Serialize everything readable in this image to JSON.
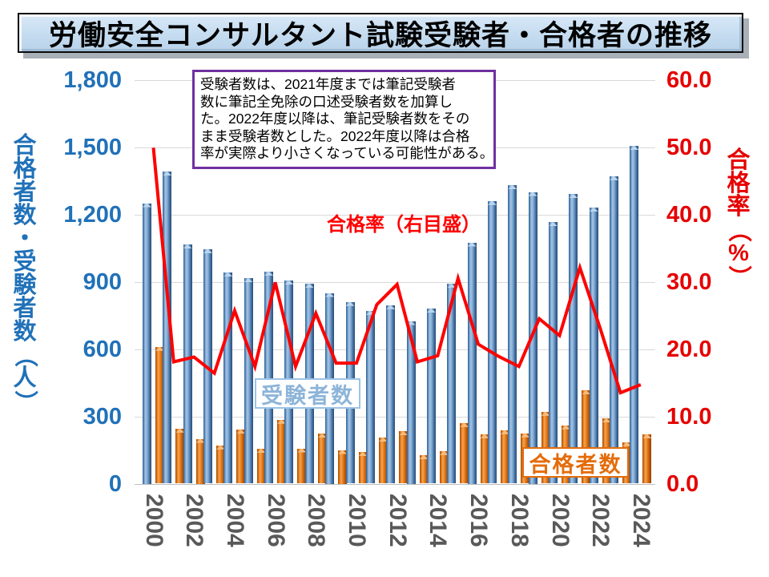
{
  "title": "労働安全コンサルタント試験受験者・合格者の推移",
  "annotation": {
    "lines": [
      "受験者数は、2021年度までは筆記受験者",
      "数に筆記全免除の口述受験者数を加算し",
      "た。2022年度以降は、筆記受験者数をその",
      "まま受験者数とした。2022年度以降は合格",
      "率が実際より小さくなっている可能性がある。"
    ]
  },
  "left_axis": {
    "title": "合格者数・受験者数（人）",
    "ticks": [
      "1,800",
      "1,500",
      "1,200",
      "900",
      "600",
      "300",
      "0"
    ],
    "color": "#2071b8"
  },
  "right_axis": {
    "title": "合格率（%）",
    "ticks": [
      "60.0",
      "50.0",
      "40.0",
      "30.0",
      "20.0",
      "10.0",
      "0.0"
    ],
    "color": "#e60000"
  },
  "x_axis": {
    "ticks": [
      "2000",
      "2002",
      "2004",
      "2006",
      "2008",
      "2010",
      "2012",
      "2014",
      "2016",
      "2018",
      "2020",
      "2022",
      "2024"
    ],
    "color": "#595959"
  },
  "labels": {
    "rate_line": "合格率（右目盛）",
    "examinees": "受験者数",
    "passers": "合格者数"
  },
  "colors": {
    "examinees_bar": "#4f81bd",
    "passers_bar": "#e46c0a",
    "rate_line": "#ff0000",
    "annotation_border": "#7030a0",
    "gridline": "#d9d9d9"
  },
  "chart_data": {
    "type": "bar",
    "note": "dual-axis combo: two bar series on left axis (people), one line series on right axis (%)",
    "categories": [
      2000,
      2001,
      2002,
      2003,
      2004,
      2005,
      2006,
      2007,
      2008,
      2009,
      2010,
      2011,
      2012,
      2013,
      2014,
      2015,
      2016,
      2017,
      2018,
      2019,
      2020,
      2021,
      2022,
      2023,
      2024
    ],
    "series": [
      {
        "name": "受験者数",
        "type": "bar",
        "axis": "left",
        "color": "#4f81bd",
        "values": [
          1250,
          1390,
          1065,
          1045,
          940,
          915,
          945,
          905,
          890,
          850,
          810,
          770,
          795,
          725,
          780,
          890,
          1075,
          1260,
          1330,
          1300,
          1165,
          1290,
          1230,
          1370,
          1505
        ]
      },
      {
        "name": "合格者数",
        "type": "bar",
        "axis": "left",
        "color": "#e46c0a",
        "values": [
          610,
          245,
          200,
          170,
          240,
          155,
          285,
          157,
          222,
          150,
          140,
          205,
          233,
          127,
          145,
          270,
          220,
          238,
          224,
          320,
          260,
          415,
          290,
          185,
          220
        ]
      },
      {
        "name": "合格率（右目盛）",
        "type": "line",
        "axis": "right",
        "color": "#ff0000",
        "values": [
          49.9,
          18.1,
          18.8,
          16.4,
          25.7,
          17.4,
          29.9,
          17.4,
          25.3,
          17.9,
          17.9,
          26.6,
          29.6,
          18.1,
          19.0,
          30.5,
          20.7,
          18.9,
          17.4,
          24.5,
          22.0,
          32.1,
          23.1,
          13.5,
          14.7
        ]
      }
    ],
    "title": "労働安全コンサルタント試験受験者・合格者の推移",
    "xlabel": "",
    "ylabel_left": "合格者数・受験者数（人）",
    "ylabel_right": "合格率（%）",
    "ylim_left": [
      0,
      1800
    ],
    "ylim_right": [
      0,
      60.0
    ],
    "grid": true,
    "legend_position": "in-plot text boxes"
  }
}
